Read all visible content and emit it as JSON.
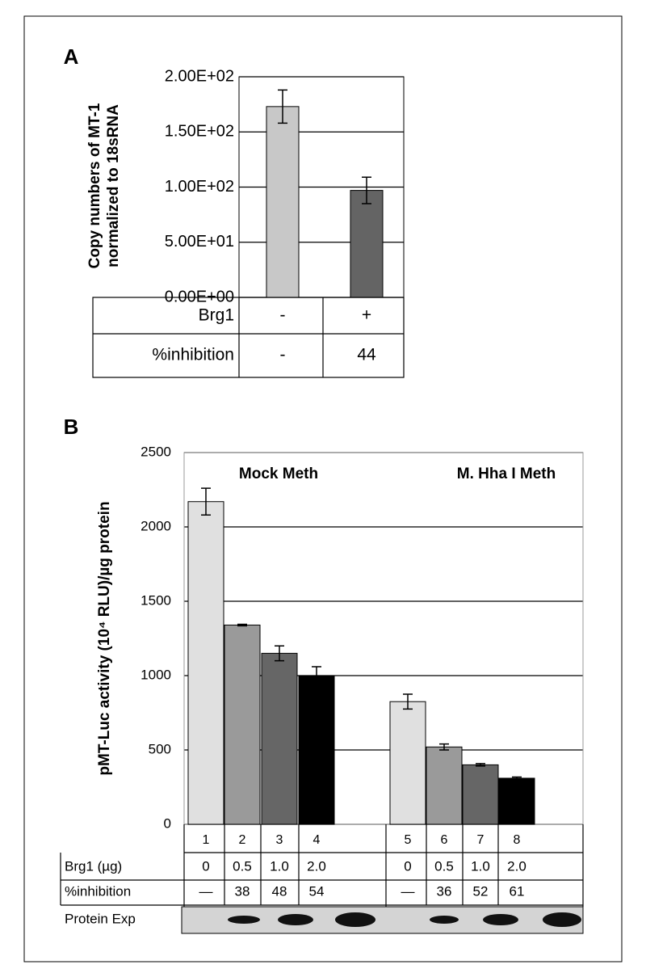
{
  "chart_data": [
    {
      "type": "bar",
      "panel": "A",
      "y_label": [
        "Copy numbers of MT-1",
        "normalized to 18sRNA"
      ],
      "categories": [
        "-",
        "+"
      ],
      "values": [
        173,
        97
      ],
      "errors": [
        15,
        12
      ],
      "colors": [
        "#c8c8c8",
        "#646464"
      ],
      "ylim": [
        0,
        200
      ],
      "yticks": [
        {
          "value": 0,
          "label": "0.00E+00"
        },
        {
          "value": 50,
          "label": "5.00E+01"
        },
        {
          "value": 100,
          "label": "1.00E+02"
        },
        {
          "value": 150,
          "label": "1.50E+02"
        },
        {
          "value": 200,
          "label": "2.00E+02"
        }
      ],
      "grid": true,
      "table": {
        "rows": [
          [
            "Brg1",
            "-",
            "+"
          ],
          [
            "%inhibition",
            "-",
            "44"
          ]
        ]
      }
    },
    {
      "type": "bar",
      "panel": "B",
      "y_label": [
        "pMT-Luc activity (10⁴ RLU)/µg protein"
      ],
      "annotations": [
        "Mock Meth",
        "M. Hha I Meth"
      ],
      "categories": [
        "1",
        "2",
        "3",
        "4",
        "5",
        "6",
        "7",
        "8"
      ],
      "values": [
        2170,
        1340,
        1150,
        1000,
        825,
        520,
        400,
        310
      ],
      "errors": [
        90,
        5,
        50,
        60,
        50,
        20,
        8,
        8
      ],
      "colors": [
        "#e0e0e0",
        "#9a9a9a",
        "#666666",
        "#000000",
        "#e0e0e0",
        "#9a9a9a",
        "#666666",
        "#000000"
      ],
      "ylim": [
        0,
        2500
      ],
      "yticks": [
        0,
        500,
        1000,
        1500,
        2000,
        2500
      ],
      "grid": true,
      "table": {
        "rows": [
          [
            "Brg1 (µg)",
            "0",
            "0.5",
            "1.0",
            "2.0",
            "0",
            "0.5",
            "1.0",
            "2.0"
          ],
          [
            "%inhibition",
            "—",
            "38",
            "48",
            "54",
            "—",
            "36",
            "52",
            "61"
          ],
          [
            "Protein Exp"
          ]
        ]
      }
    }
  ]
}
